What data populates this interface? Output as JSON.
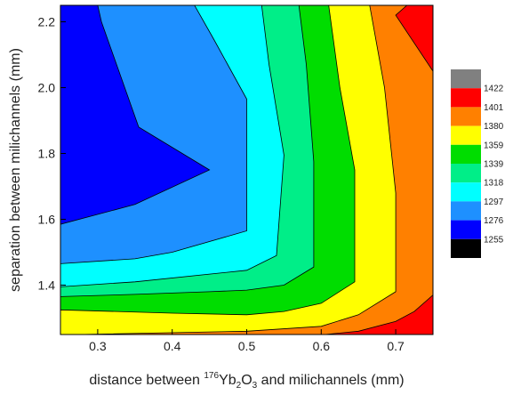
{
  "chart_data": {
    "type": "contour",
    "xlabel_parts": {
      "before": "distance between ",
      "iso_mass": "176",
      "element": "Yb",
      "sub1": "2",
      "oxide": "O",
      "sub2": "3",
      "after": " and milichannels (mm)"
    },
    "ylabel": "separation between milichannels (mm)",
    "xlim": [
      0.25,
      0.75
    ],
    "ylim": [
      1.25,
      2.25
    ],
    "x_ticks": [
      "0.3",
      "0.4",
      "0.5",
      "0.6",
      "0.7"
    ],
    "x_tick_values": [
      0.3,
      0.4,
      0.5,
      0.6,
      0.7
    ],
    "y_ticks": [
      "1.4",
      "1.6",
      "1.8",
      "2.0",
      "2.2"
    ],
    "y_tick_values": [
      1.4,
      1.6,
      1.8,
      2.0,
      2.2
    ],
    "levels": [
      1255,
      1276,
      1297,
      1318,
      1339,
      1359,
      1380,
      1401,
      1422
    ],
    "legend_labels": [
      "1422",
      "1401",
      "1380",
      "1359",
      "1339",
      "1318",
      "1297",
      "1276",
      "1255"
    ],
    "legend_colors": [
      "#808080",
      "#ff0000",
      "#ff8000",
      "#ffff00",
      "#00dd00",
      "#00ee88",
      "#00ffff",
      "#1e90ff",
      "#0000ff",
      "#000000"
    ],
    "bands": [
      {
        "color": "#1e90ff",
        "points": [
          [
            0.25,
            1.25
          ],
          [
            0.75,
            1.25
          ],
          [
            0.75,
            2.25
          ],
          [
            0.25,
            2.25
          ]
        ]
      },
      {
        "color": "#0000ff",
        "points": [
          [
            0.25,
            1.585
          ],
          [
            0.35,
            1.645
          ],
          [
            0.45,
            1.75
          ],
          [
            0.355,
            1.88
          ],
          [
            0.305,
            2.2
          ],
          [
            0.3,
            2.25
          ],
          [
            0.25,
            2.25
          ]
        ]
      },
      {
        "color": "#00ffff",
        "points": [
          [
            0.25,
            1.25
          ],
          [
            0.25,
            1.465
          ],
          [
            0.35,
            1.48
          ],
          [
            0.4,
            1.5
          ],
          [
            0.5,
            1.565
          ],
          [
            0.5,
            1.965
          ],
          [
            0.455,
            2.15
          ],
          [
            0.43,
            2.25
          ],
          [
            0.75,
            2.25
          ],
          [
            0.75,
            1.25
          ]
        ]
      },
      {
        "color": "#00ee88",
        "points": [
          [
            0.25,
            1.25
          ],
          [
            0.25,
            1.395
          ],
          [
            0.35,
            1.41
          ],
          [
            0.5,
            1.445
          ],
          [
            0.54,
            1.49
          ],
          [
            0.55,
            1.795
          ],
          [
            0.53,
            2.07
          ],
          [
            0.52,
            2.25
          ],
          [
            0.75,
            2.25
          ],
          [
            0.75,
            1.25
          ]
        ]
      },
      {
        "color": "#00dd00",
        "points": [
          [
            0.25,
            1.25
          ],
          [
            0.25,
            1.365
          ],
          [
            0.35,
            1.372
          ],
          [
            0.45,
            1.38
          ],
          [
            0.5,
            1.385
          ],
          [
            0.55,
            1.4
          ],
          [
            0.59,
            1.455
          ],
          [
            0.59,
            1.775
          ],
          [
            0.58,
            2.07
          ],
          [
            0.57,
            2.25
          ],
          [
            0.75,
            2.25
          ],
          [
            0.75,
            1.25
          ]
        ]
      },
      {
        "color": "#ffff00",
        "points": [
          [
            0.25,
            1.25
          ],
          [
            0.25,
            1.325
          ],
          [
            0.4,
            1.315
          ],
          [
            0.5,
            1.31
          ],
          [
            0.55,
            1.32
          ],
          [
            0.6,
            1.345
          ],
          [
            0.645,
            1.41
          ],
          [
            0.645,
            1.75
          ],
          [
            0.625,
            2.0
          ],
          [
            0.61,
            2.25
          ],
          [
            0.75,
            2.25
          ],
          [
            0.75,
            1.25
          ]
        ]
      },
      {
        "color": "#ff8000",
        "points": [
          [
            0.275,
            1.25
          ],
          [
            0.5,
            1.26
          ],
          [
            0.6,
            1.275
          ],
          [
            0.65,
            1.31
          ],
          [
            0.7,
            1.38
          ],
          [
            0.7,
            1.68
          ],
          [
            0.685,
            2.0
          ],
          [
            0.665,
            2.25
          ],
          [
            0.75,
            2.25
          ],
          [
            0.75,
            1.25
          ]
        ]
      },
      {
        "color": "#ff0000",
        "points": [
          [
            0.495,
            1.25
          ],
          [
            0.605,
            1.25
          ],
          [
            0.65,
            1.26
          ],
          [
            0.7,
            1.29
          ],
          [
            0.725,
            1.32
          ],
          [
            0.75,
            1.37
          ],
          [
            0.75,
            1.25
          ]
        ]
      },
      {
        "color": "#ff8000",
        "points": [
          [
            0.61,
            1.25
          ],
          [
            0.75,
            1.25
          ],
          [
            0.75,
            1.245
          ]
        ]
      },
      {
        "color": "#ffff00",
        "points": [
          [
            0.41,
            1.25
          ],
          [
            0.5,
            1.25
          ],
          [
            0.495,
            1.25
          ]
        ]
      },
      {
        "color": "#ffff00",
        "points": [
          [
            0.625,
            1.25
          ],
          [
            0.68,
            1.25
          ],
          [
            0.64,
            1.25
          ]
        ]
      },
      {
        "color": "#ff0000",
        "points": [
          [
            0.7,
            2.22
          ],
          [
            0.715,
            2.25
          ],
          [
            0.75,
            2.25
          ],
          [
            0.75,
            2.05
          ]
        ]
      }
    ]
  }
}
